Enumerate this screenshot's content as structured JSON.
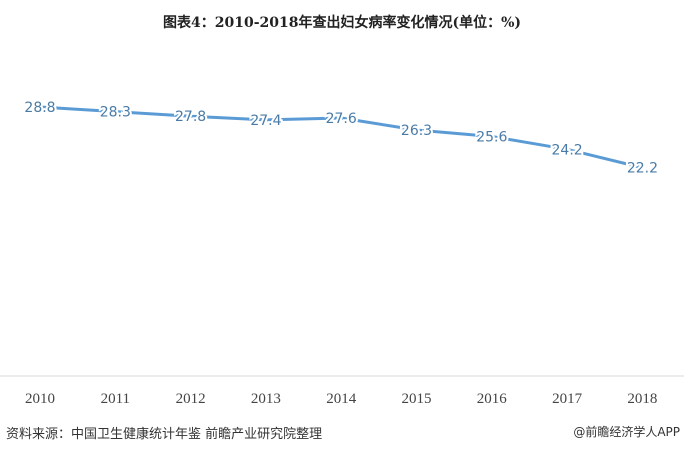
{
  "chart_data": {
    "type": "line",
    "title": "图表4：2010-2018年查出妇女病率变化情况(单位：%)",
    "categories": [
      "2010",
      "2011",
      "2012",
      "2013",
      "2014",
      "2015",
      "2016",
      "2017",
      "2018"
    ],
    "series": [
      {
        "values": [
          28.8,
          28.3,
          27.8,
          27.4,
          27.6,
          26.3,
          25.6,
          24.2,
          22.2
        ]
      }
    ],
    "ylim": [
      0,
      28.8
    ],
    "grid": false,
    "data_labels": true,
    "line_color": "#5b9bd5",
    "label_color": "#4a7ba6"
  },
  "footer": {
    "source": "资料来源：中国卫生健康统计年鉴 前瞻产业研究院整理",
    "credit": "@前瞻经济学人APP"
  }
}
